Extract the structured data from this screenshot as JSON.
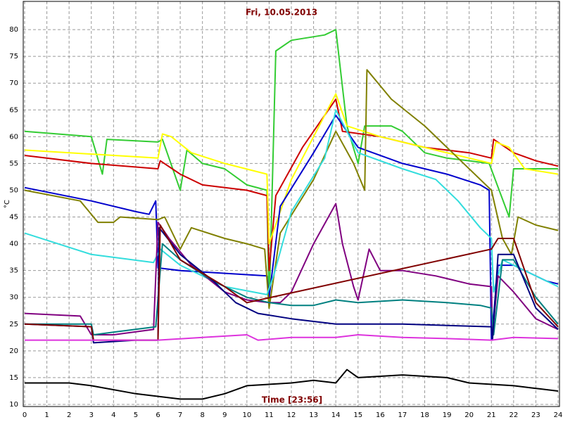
{
  "chart_data": {
    "type": "line",
    "title": "Fri, 10.05.2013",
    "x_label": "Time [23:56]",
    "y_label": "°C",
    "xlim": [
      0,
      24
    ],
    "ylim": [
      10,
      85
    ],
    "xticks": [
      0,
      1,
      2,
      3,
      4,
      5,
      6,
      7,
      8,
      9,
      10,
      11,
      12,
      13,
      14,
      15,
      16,
      17,
      18,
      19,
      20,
      21,
      22,
      23,
      24
    ],
    "yticks": [
      10,
      15,
      20,
      25,
      30,
      35,
      40,
      45,
      50,
      55,
      60,
      65,
      70,
      75,
      80
    ],
    "grid": true,
    "series": [
      {
        "color": "#33cc33",
        "x": [
          0,
          3,
          3.5,
          3.7,
          6,
          6.2,
          7,
          7.3,
          8,
          9,
          10,
          10.9,
          11,
          11.3,
          12,
          13.5,
          14,
          14.5,
          15,
          15.3,
          16.5,
          17,
          18,
          19,
          20,
          20.9,
          21.8,
          22,
          23,
          24
        ],
        "values": [
          61,
          60,
          53,
          59.5,
          59,
          59.5,
          50,
          57.5,
          55,
          54,
          51,
          50,
          28,
          76,
          78,
          79,
          80,
          62,
          55,
          62,
          62,
          61,
          57,
          56,
          55.5,
          55,
          45,
          54,
          54,
          54
        ]
      },
      {
        "color": "#cc0000",
        "x": [
          0,
          3,
          6,
          6.1,
          7,
          8,
          10,
          10.9,
          11,
          11.3,
          12.5,
          14,
          14.3,
          16,
          18,
          20,
          21,
          21.1,
          22,
          23,
          24
        ],
        "values": [
          56.5,
          55,
          54,
          55.5,
          53,
          51,
          50,
          49,
          35,
          49,
          58,
          67,
          61,
          60,
          58,
          57,
          56,
          59.5,
          57,
          55.5,
          54.5
        ]
      },
      {
        "color": "#ffff00",
        "x": [
          0,
          6,
          6.2,
          6.6,
          7.5,
          9,
          10.9,
          11,
          12,
          14,
          14.5,
          16,
          18,
          20,
          21,
          21.2,
          21.8,
          22.5,
          24
        ],
        "values": [
          57.5,
          56,
          60.5,
          60,
          57,
          55,
          53,
          40,
          52,
          68,
          62,
          60,
          58,
          56,
          55,
          59,
          58,
          54,
          53
        ]
      },
      {
        "color": "#0000cc",
        "x": [
          0,
          3,
          5,
          5.6,
          5.9,
          6,
          7,
          10.9,
          11,
          11.5,
          13,
          14,
          15,
          17,
          19,
          20.5,
          20.9,
          21,
          21.3,
          22,
          23.5,
          24
        ],
        "values": [
          50.5,
          48,
          46,
          45.5,
          48,
          35.5,
          35,
          34,
          30,
          47,
          57,
          64,
          58,
          55,
          53,
          51,
          50,
          22,
          36,
          36,
          33,
          32.5
        ]
      },
      {
        "color": "#808000",
        "x": [
          0,
          2.5,
          3.3,
          4,
          4.3,
          6,
          6.3,
          7,
          7.5,
          9,
          10,
          10.8,
          11,
          11.5,
          13,
          14,
          14.8,
          15.3,
          15.4,
          16.5,
          18,
          19.5,
          21,
          21.5,
          21.9,
          22.2,
          23,
          24
        ],
        "values": [
          50,
          48,
          44,
          44,
          45,
          44.5,
          45,
          39,
          43,
          41,
          40,
          39,
          28,
          42,
          52,
          61,
          55,
          50,
          72.5,
          67,
          62,
          56,
          50,
          41,
          38,
          45,
          43.5,
          42.5
        ]
      },
      {
        "color": "#33dddd",
        "x": [
          0,
          3,
          5.8,
          6.1,
          7,
          9,
          10.9,
          11.2,
          12,
          13.5,
          14,
          15,
          17,
          18.5,
          19.5,
          20.5,
          21,
          21.1,
          21.5,
          22.5,
          24
        ],
        "values": [
          42,
          38,
          36.5,
          39,
          36,
          32,
          30.5,
          34,
          46,
          56,
          65,
          57,
          54,
          52,
          48,
          43,
          41,
          31,
          37,
          35,
          32
        ]
      },
      {
        "color": "#800080",
        "x": [
          0,
          2.5,
          3,
          4,
          5.8,
          6,
          6.5,
          7.5,
          9,
          10,
          11,
          11.5,
          12,
          13,
          14,
          14.3,
          14.8,
          15,
          15.5,
          16,
          17,
          18.5,
          20,
          21,
          21.05,
          21.3,
          22,
          23,
          24
        ],
        "values": [
          27,
          26.5,
          23,
          23,
          24,
          44,
          41,
          36,
          31,
          29.5,
          29,
          29,
          31,
          40,
          47.5,
          40,
          32,
          29.5,
          39,
          35,
          35,
          34,
          32.5,
          32,
          23,
          34,
          31,
          26,
          24
        ]
      },
      {
        "color": "#008080",
        "x": [
          0,
          3,
          3.1,
          4,
          5.9,
          6.2,
          7,
          8.5,
          10,
          11,
          12,
          13,
          14,
          15,
          17,
          19,
          20.5,
          21,
          21.1,
          21.5,
          22,
          23,
          24
        ],
        "values": [
          25,
          25,
          23,
          23.5,
          24.5,
          40,
          37,
          33,
          30,
          29,
          28.5,
          28.5,
          29.5,
          29,
          29.5,
          29,
          28.5,
          28,
          23,
          37,
          37,
          30,
          25
        ]
      },
      {
        "color": "#000080",
        "x": [
          0,
          3,
          3.1,
          5,
          6,
          6.05,
          7,
          8.5,
          9.5,
          10.5,
          12,
          14,
          17,
          21,
          21.05,
          21.3,
          22,
          23,
          24
        ],
        "values": [
          25,
          24.5,
          21.5,
          22,
          22,
          43,
          38,
          33,
          29,
          27,
          26,
          25,
          25,
          24.5,
          22,
          38,
          38,
          28,
          24
        ]
      },
      {
        "color": "#800000",
        "x": [
          0,
          3,
          3.1,
          6,
          6.1,
          7,
          9,
          10,
          21,
          21.3,
          22,
          23,
          24
        ],
        "values": [
          25,
          24.5,
          22,
          22,
          43.5,
          37,
          32,
          29,
          39,
          41,
          41,
          29,
          24.5
        ]
      },
      {
        "color": "#dd33dd",
        "x": [
          0,
          6,
          8,
          10,
          10.5,
          12,
          14,
          15,
          17,
          19,
          21,
          22,
          24
        ],
        "values": [
          22,
          22,
          22.5,
          23,
          22,
          22.5,
          22.5,
          23,
          22.5,
          22.3,
          22,
          22.5,
          22.3
        ]
      },
      {
        "color": "#000000",
        "x": [
          0,
          2,
          3,
          5,
          7,
          8,
          9,
          10,
          12,
          13,
          14,
          14.5,
          15,
          17,
          19,
          20,
          22,
          23,
          24
        ],
        "values": [
          14,
          14,
          13.5,
          12,
          11,
          11,
          12,
          13.5,
          14,
          14.5,
          14,
          16.5,
          15,
          15.5,
          15,
          14,
          13.5,
          13,
          12.5
        ]
      }
    ]
  }
}
